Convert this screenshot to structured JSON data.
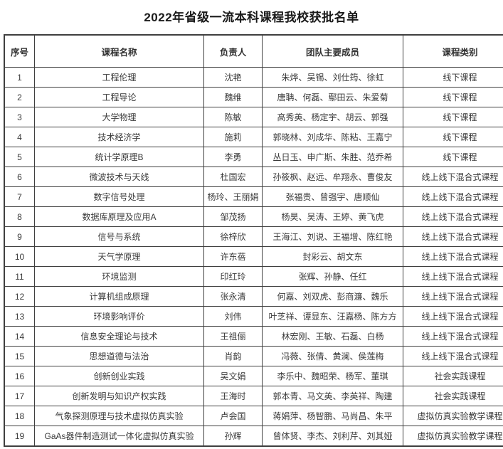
{
  "title": "2022年省级一流本科课程我校获批名单",
  "table": {
    "headers": [
      "序号",
      "课程名称",
      "负责人",
      "团队主要成员",
      "课程类别"
    ],
    "rows": [
      [
        "1",
        "工程伦理",
        "沈艳",
        "朱烨、吴锡、刘仕筠、徐虹",
        "线下课程"
      ],
      [
        "2",
        "工程导论",
        "魏维",
        "唐聃、何磊、鄢田云、朱爱菊",
        "线下课程"
      ],
      [
        "3",
        "大学物理",
        "陈敏",
        "高秀英、杨定宇、胡云、郭强",
        "线下课程"
      ],
      [
        "4",
        "技术经济学",
        "施莉",
        "郭晓林、刘成华、陈粘、王嘉宁",
        "线下课程"
      ],
      [
        "5",
        "统计学原理B",
        "李勇",
        "丛日玉、申广斯、朱胜、范乔希",
        "线下课程"
      ],
      [
        "6",
        "微波技术与天线",
        "杜国宏",
        "孙筱枫、赵远、牟翔永、曹俊友",
        "线上线下混合式课程"
      ],
      [
        "7",
        "数字信号处理",
        "杨玲、王丽娟",
        "张福贵、曾强宇、唐顺仙",
        "线上线下混合式课程"
      ],
      [
        "8",
        "数据库原理及应用A",
        "邹茂扬",
        "杨昊、吴涛、王婷、黄飞虎",
        "线上线下混合式课程"
      ],
      [
        "9",
        "信号与系统",
        "徐梓欣",
        "王海江、刘说、王福增、陈红艳",
        "线上线下混合式课程"
      ],
      [
        "10",
        "天气学原理",
        "许东蓓",
        "封彩云、胡文东",
        "线上线下混合式课程"
      ],
      [
        "11",
        "环境监测",
        "印红玲",
        "张辉、孙静、任红",
        "线上线下混合式课程"
      ],
      [
        "12",
        "计算机组成原理",
        "张永清",
        "何嘉、刘双虎、彭商濂、魏乐",
        "线上线下混合式课程"
      ],
      [
        "13",
        "环境影响评价",
        "刘伟",
        "叶芝祥、谭显东、汪嘉杨、陈方方",
        "线上线下混合式课程"
      ],
      [
        "14",
        "信息安全理论与技术",
        "王祖俪",
        "林宏刚、王敏、石磊、白杨",
        "线上线下混合式课程"
      ],
      [
        "15",
        "思想道德与法治",
        "肖韵",
        "冯薇、张倩、黄澜、侯莲梅",
        "线上线下混合式课程"
      ],
      [
        "16",
        "创新创业实践",
        "吴文娟",
        "李乐中、魏昭荣、杨军、董琪",
        "社会实践课程"
      ],
      [
        "17",
        "创新发明与知识产权实践",
        "王海时",
        "郭本青、马文英、李英祥、陶建",
        "社会实践课程"
      ],
      [
        "18",
        "气象探测原理与技术虚拟仿真实验",
        "卢会国",
        "蒋娟萍、杨智鹏、马尚昌、朱平",
        "虚拟仿真实验教学课程"
      ],
      [
        "19",
        "GaAs器件制造测试一体化虚拟仿真实验",
        "孙辉",
        "曾体贤、李杰、刘利芹、刘其娅",
        "虚拟仿真实验教学课程"
      ]
    ]
  }
}
